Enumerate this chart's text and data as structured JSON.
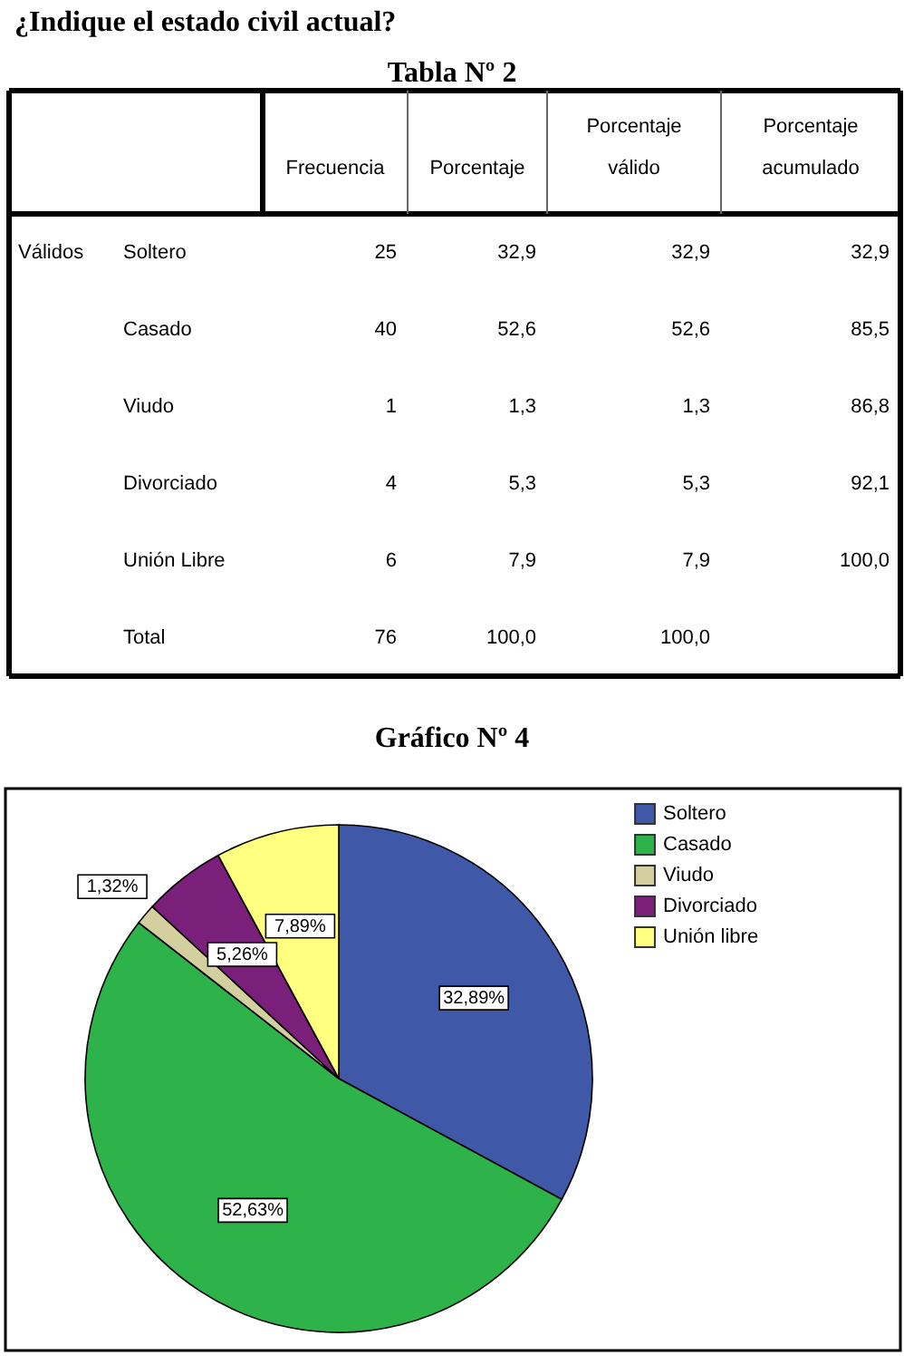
{
  "chart_data": [
    {
      "type": "other",
      "title": "Tabla Nº 2",
      "annotations": [
        "¿Indique el estado civil actual?",
        "Válidos"
      ],
      "categories": [
        "Frecuencia",
        "Porcentaje",
        "Porcentaje válido",
        "Porcentaje acumulado"
      ],
      "y_categories": [
        "Soltero",
        "Casado",
        "Viudo",
        "Divorciado",
        "Unión Libre",
        "Total"
      ],
      "cell_labels": [
        [
          "25",
          "32,9",
          "32,9",
          "32,9"
        ],
        [
          "40",
          "52,6",
          "52,6",
          "85,5"
        ],
        [
          "1",
          "1,3",
          "1,3",
          "86,8"
        ],
        [
          "4",
          "5,3",
          "5,3",
          "92,1"
        ],
        [
          "6",
          "7,9",
          "7,9",
          "100,0"
        ],
        [
          "76",
          "100,0",
          "100,0",
          null
        ]
      ]
    },
    {
      "type": "pie",
      "title": "Gráfico Nº 4",
      "categories": [
        "Soltero",
        "Casado",
        "Viudo",
        "Divorciado",
        "Unión libre"
      ],
      "values": [
        32.89,
        52.63,
        1.32,
        5.26,
        7.89
      ],
      "colors": [
        "#3f58a8",
        "#2db34a",
        "#d4cf9f",
        "#7a1f7a",
        "#ffff80"
      ],
      "value_labels": [
        "32,89%",
        "52,63%",
        "1,32%",
        "5,26%",
        "7,89%"
      ],
      "legend": "top right"
    }
  ]
}
